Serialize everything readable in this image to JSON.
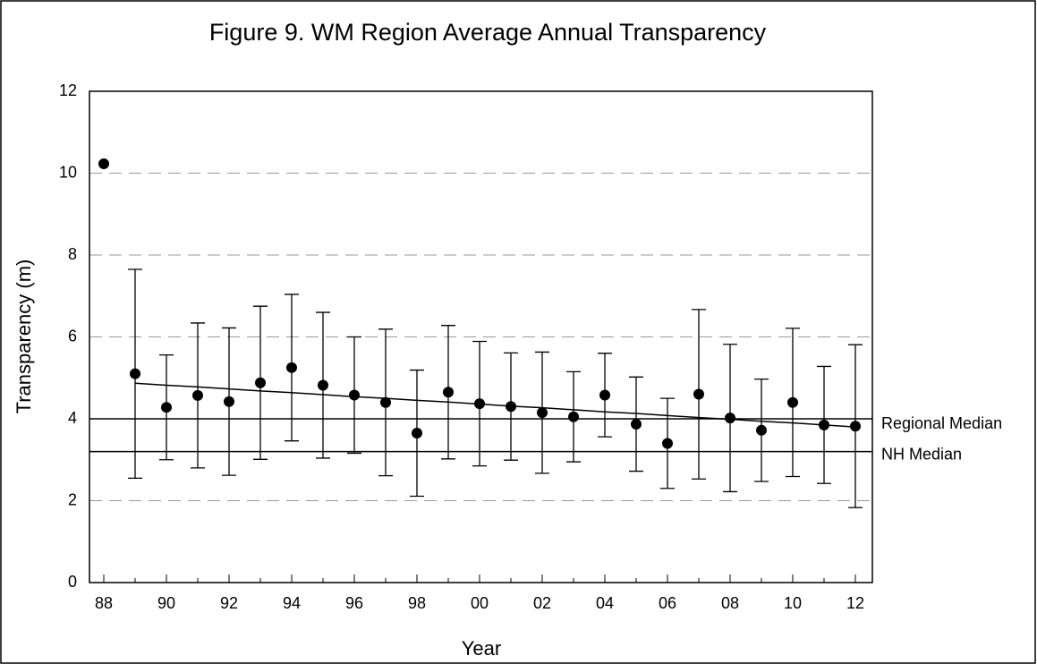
{
  "chart_data": {
    "type": "scatter",
    "title": "Figure 9. WM Region Average Annual Transparency",
    "x_label": "Year",
    "y_label": "Transparency (m)",
    "categories": [
      "88",
      null,
      "90",
      null,
      "92",
      null,
      "94",
      null,
      "96",
      null,
      "98",
      null,
      "00",
      null,
      "02",
      null,
      "04",
      null,
      "06",
      null,
      "08",
      null,
      "10",
      null,
      "12"
    ],
    "series": [
      {
        "name": "Average",
        "color": "#000000",
        "values": [
          10.23,
          5.1,
          4.28,
          4.57,
          4.42,
          4.88,
          5.25,
          4.82,
          4.58,
          4.4,
          3.65,
          4.65,
          4.37,
          4.3,
          4.15,
          4.05,
          4.58,
          3.87,
          3.4,
          4.6,
          4.02,
          3.72,
          4.4,
          3.85,
          3.82
        ],
        "errors": [
          null,
          2.55,
          1.28,
          1.77,
          1.8,
          1.87,
          1.79,
          1.78,
          1.42,
          1.79,
          1.54,
          1.63,
          1.52,
          1.31,
          1.48,
          1.1,
          1.02,
          1.15,
          1.1,
          2.07,
          1.8,
          1.25,
          1.81,
          1.43,
          1.99
        ]
      }
    ],
    "trend": {
      "color": "#000000",
      "values": [
        null,
        4.87,
        4.82,
        4.78,
        4.73,
        4.68,
        4.64,
        4.59,
        4.54,
        4.5,
        4.45,
        4.41,
        4.36,
        4.31,
        4.27,
        4.22,
        4.17,
        4.13,
        4.08,
        4.03,
        3.99,
        3.94,
        3.9,
        3.85,
        3.8
      ]
    },
    "reference_lines": [
      {
        "name": "Regional Median",
        "value": 4
      },
      {
        "name": "NH Median",
        "value": 3.2
      }
    ],
    "ylim": [
      0,
      12
    ],
    "yticks": [
      0,
      2,
      4,
      6,
      8,
      10,
      12
    ],
    "grid": true
  }
}
